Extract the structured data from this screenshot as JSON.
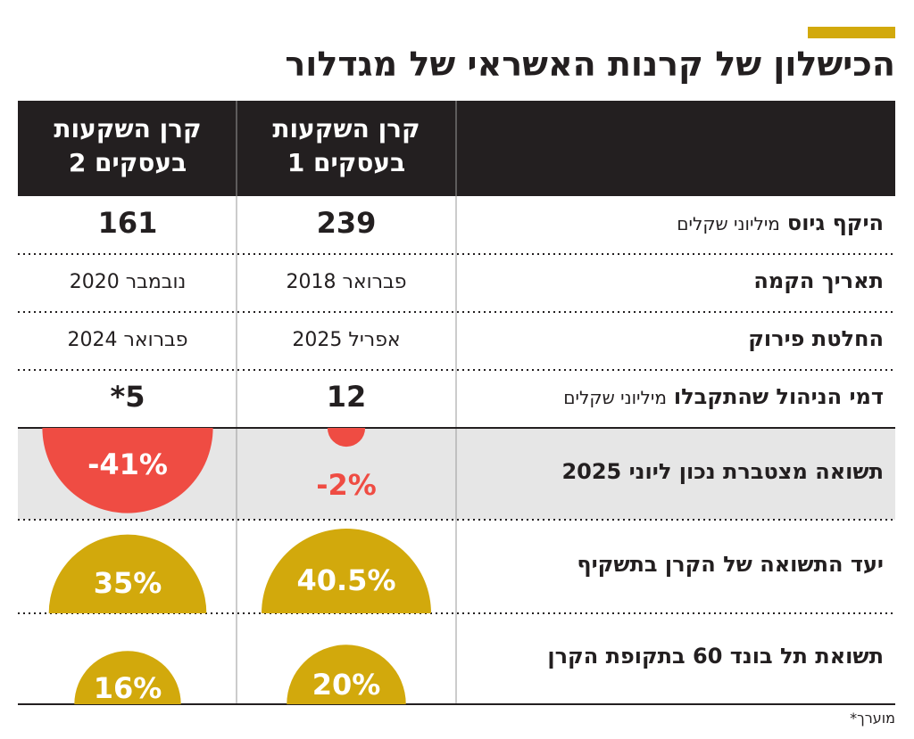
{
  "title": "הכישלון של קרנות האשראי של מגדלור",
  "table": {
    "headers": [
      [
        "קרן השקעות",
        "בעסקים 1"
      ],
      [
        "קרן השקעות",
        "בעסקים 2"
      ]
    ],
    "rows": [
      {
        "label": "היקף גיוס",
        "unit": "מיליוני שקלים",
        "values": [
          239,
          161
        ]
      },
      {
        "label": "תאריך הקמה",
        "values": [
          "פברואר 2018",
          "נובמבר 2020"
        ]
      },
      {
        "label": "החלטת פירוק",
        "values": [
          "אפריל 2025",
          "פברואר 2024"
        ]
      },
      {
        "label": "דמי הניהול שהתקבלו",
        "unit": "מיליוני שקלים",
        "values": [
          12,
          5
        ],
        "value_labels": [
          "12",
          "5*"
        ]
      },
      {
        "label": "תשואה מצטברת נכון ליוני 2025",
        "values": [
          -2,
          -41
        ],
        "value_labels": [
          "-2%",
          "-41%"
        ],
        "color": "#ef4c43"
      },
      {
        "label": "יעד התשואה של הקרן בתשקיף",
        "values": [
          40.5,
          35
        ],
        "value_labels": [
          "40.5%",
          "35%"
        ],
        "color": "#d2a90c"
      },
      {
        "label": "תשואת תל בונד 60 בתקופת הקרן",
        "values": [
          20,
          16
        ],
        "value_labels": [
          "20%",
          "16%"
        ],
        "color": "#d2a90c"
      }
    ]
  },
  "footnote": "מוערך*"
}
